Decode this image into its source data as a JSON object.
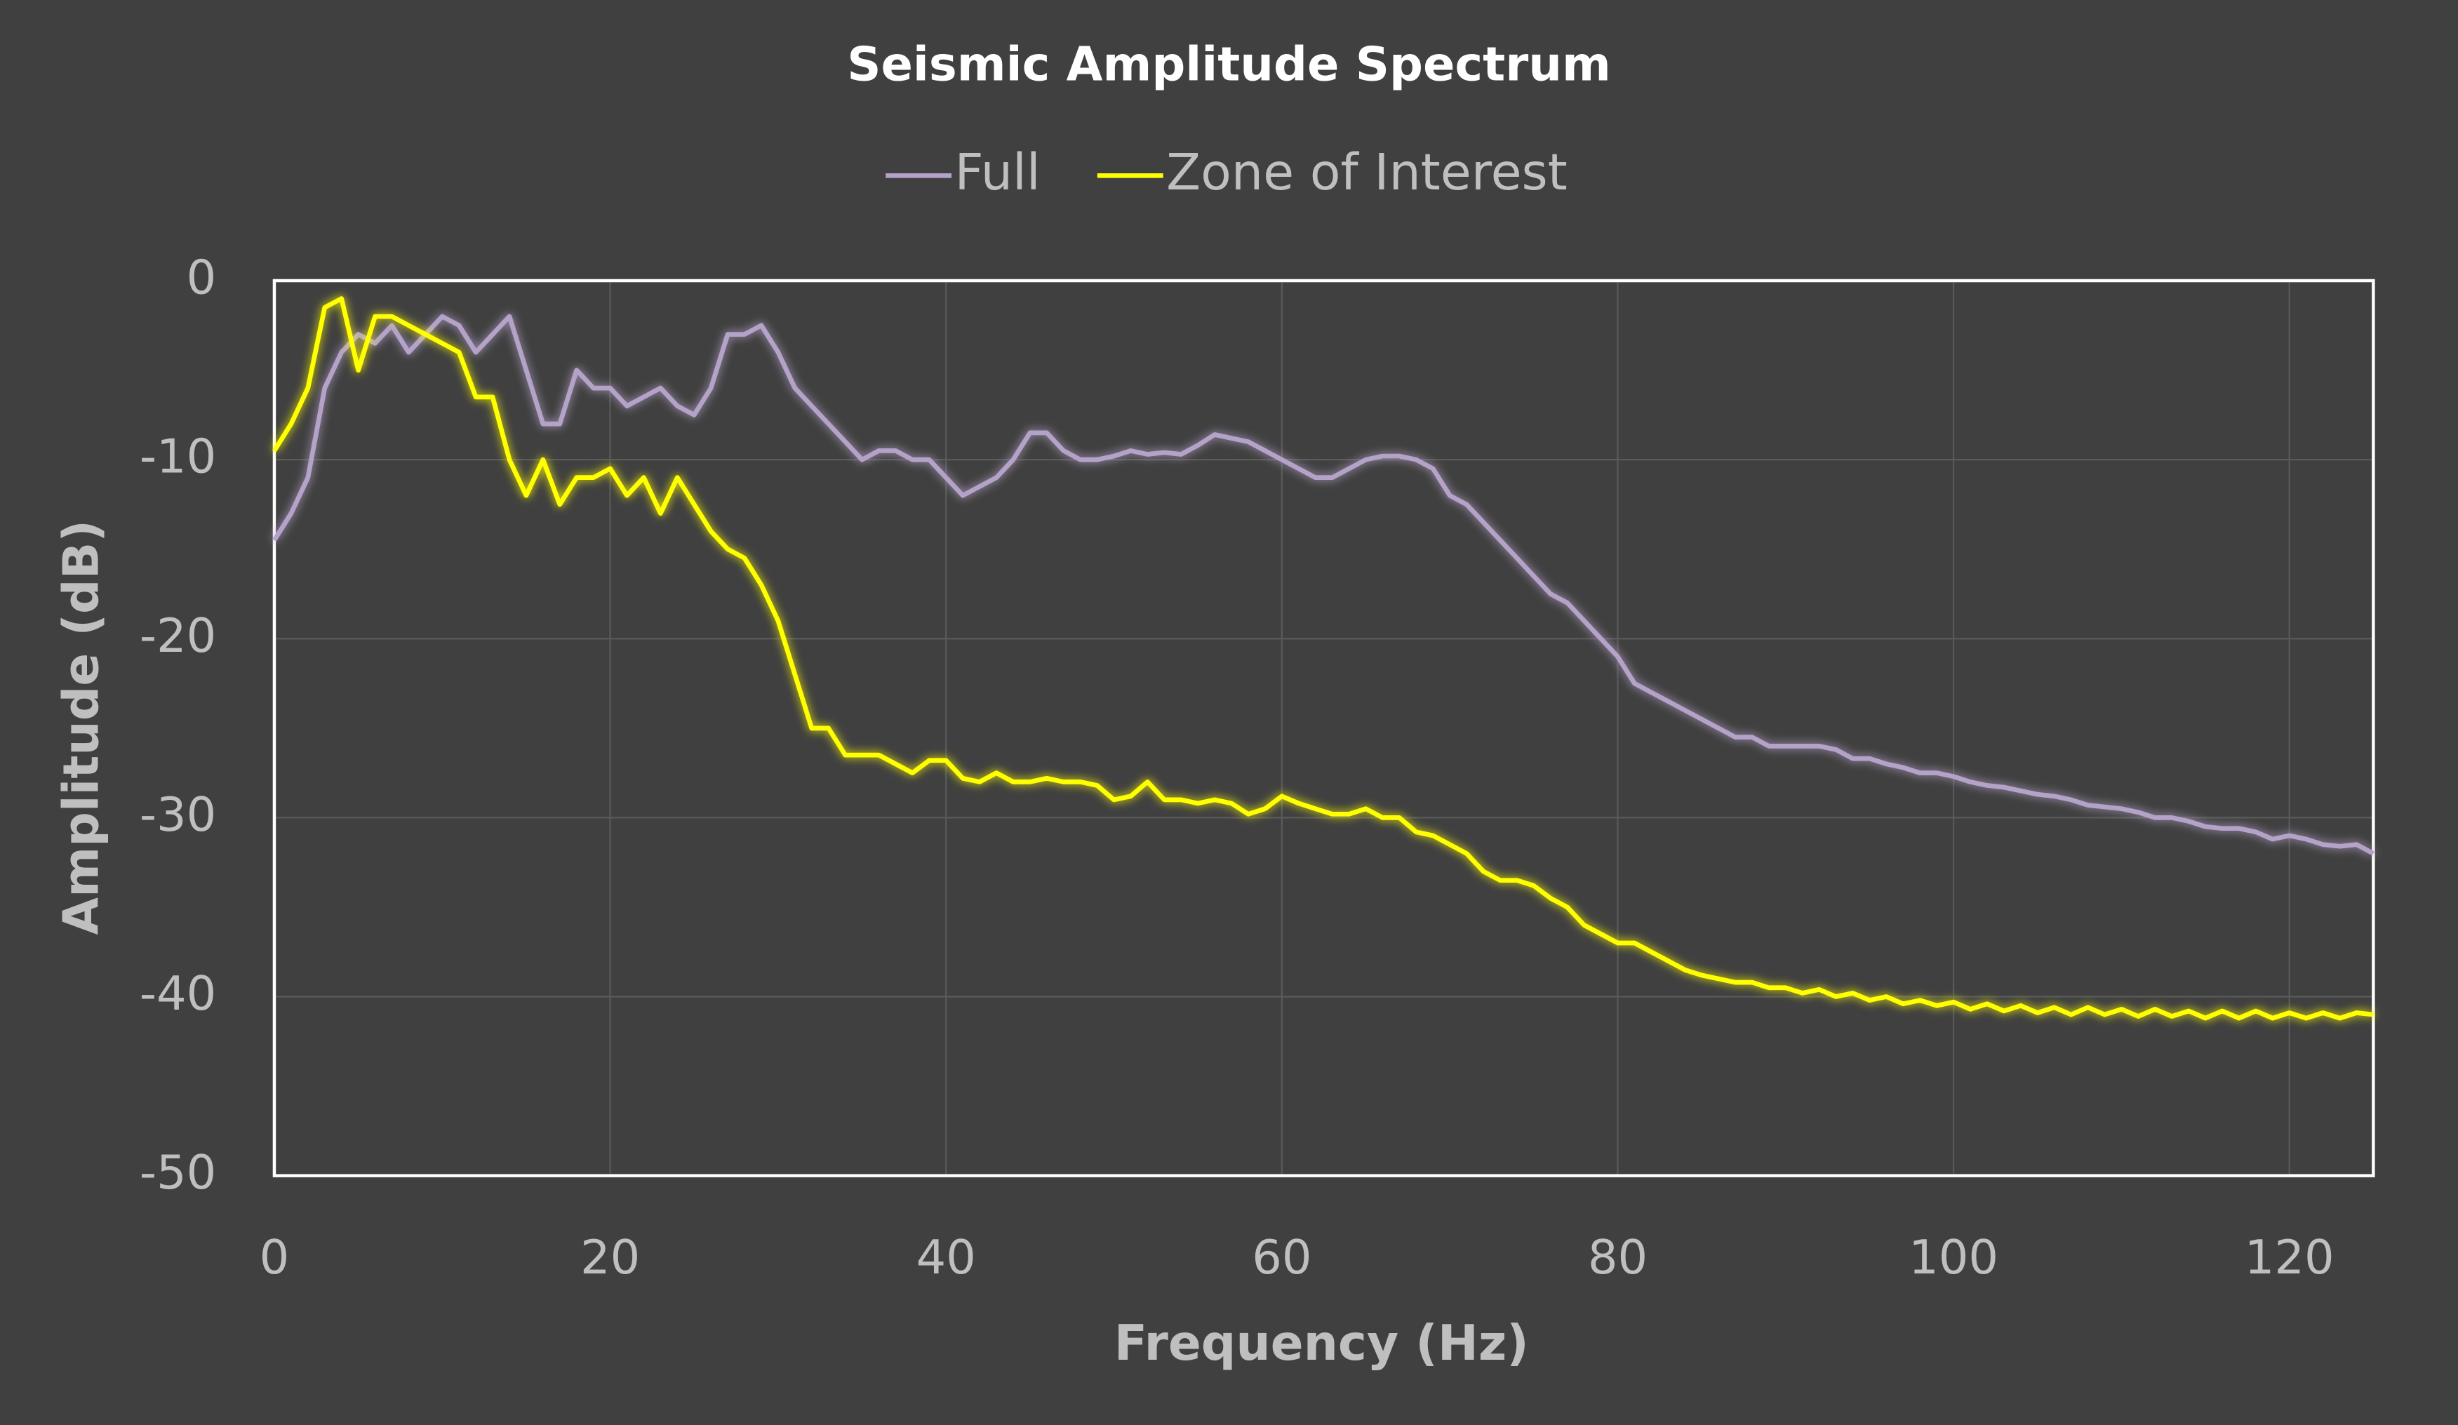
{
  "chart_data": {
    "type": "line",
    "title": "Seismic Amplitude Spectrum",
    "x_label": "Frequency (Hz)",
    "y_label": "Amplitude (dB)",
    "xlim": [
      0,
      125
    ],
    "xticks": [
      0,
      20,
      40,
      60,
      80,
      100,
      120
    ],
    "ylim": [
      -50,
      0
    ],
    "yticks": [
      -50,
      -40,
      -30,
      -20,
      -10,
      0
    ],
    "grid": true,
    "legend": "top",
    "x": [
      0,
      1,
      2,
      3,
      4,
      5,
      6,
      7,
      8,
      9,
      10,
      11,
      12,
      13,
      14,
      15,
      16,
      17,
      18,
      19,
      20,
      21,
      22,
      23,
      24,
      25,
      26,
      27,
      28,
      29,
      30,
      31,
      32,
      33,
      34,
      35,
      36,
      37,
      38,
      39,
      40,
      41,
      42,
      43,
      44,
      45,
      46,
      47,
      48,
      49,
      50,
      51,
      52,
      53,
      54,
      55,
      56,
      57,
      58,
      59,
      60,
      61,
      62,
      63,
      64,
      65,
      66,
      67,
      68,
      69,
      70,
      71,
      72,
      73,
      74,
      75,
      76,
      77,
      78,
      79,
      80,
      81,
      82,
      83,
      84,
      85,
      86,
      87,
      88,
      89,
      90,
      91,
      92,
      93,
      94,
      95,
      96,
      97,
      98,
      99,
      100,
      101,
      102,
      103,
      104,
      105,
      106,
      107,
      108,
      109,
      110,
      111,
      112,
      113,
      114,
      115,
      116,
      117,
      118,
      119,
      120,
      121,
      122,
      123,
      124,
      125
    ],
    "series": [
      {
        "name": "Full",
        "color": "#b4a2c8",
        "values": [
          -14.5,
          -13,
          -11,
          -6,
          -4,
          -3,
          -3.5,
          -2.5,
          -4,
          -3,
          -2,
          -2.5,
          -4,
          -3,
          -2,
          -5,
          -8,
          -8,
          -5,
          -6,
          -6,
          -7,
          -6.5,
          -6,
          -7,
          -7.5,
          -6,
          -3,
          -3,
          -2.5,
          -4,
          -6,
          -7,
          -8,
          -9,
          -10,
          -9.5,
          -9.5,
          -10,
          -10,
          -11,
          -12,
          -11.5,
          -11,
          -10,
          -8.5,
          -8.5,
          -9.5,
          -10,
          -10,
          -9.8,
          -9.5,
          -9.7,
          -9.6,
          -9.7,
          -9.2,
          -8.6,
          -8.8,
          -9,
          -9.5,
          -10,
          -10.5,
          -11,
          -11,
          -10.5,
          -10,
          -9.8,
          -9.8,
          -10,
          -10.5,
          -12,
          -12.5,
          -13.5,
          -14.5,
          -15.5,
          -16.5,
          -17.5,
          -18,
          -19,
          -20,
          -21,
          -22.5,
          -23,
          -23.5,
          -24,
          -24.5,
          -25,
          -25.5,
          -25.5,
          -26,
          -26,
          -26,
          -26,
          -26.2,
          -26.7,
          -26.7,
          -27,
          -27.2,
          -27.5,
          -27.5,
          -27.7,
          -28,
          -28.2,
          -28.3,
          -28.5,
          -28.7,
          -28.8,
          -29,
          -29.3,
          -29.4,
          -29.5,
          -29.7,
          -30,
          -30,
          -30.2,
          -30.5,
          -30.6,
          -30.6,
          -30.8,
          -31.2,
          -31,
          -31.2,
          -31.5,
          -31.6,
          -31.5,
          -32
        ]
      },
      {
        "name": "Zone of Interest",
        "color": "#ffff00",
        "values": [
          -9.5,
          -8,
          -6,
          -1.5,
          -1,
          -5,
          -2,
          -2,
          -2.5,
          -3,
          -3.5,
          -4,
          -6.5,
          -6.5,
          -10,
          -12,
          -10,
          -12.5,
          -11,
          -11,
          -10.5,
          -12,
          -11,
          -13,
          -11,
          -12.5,
          -14,
          -15,
          -15.5,
          -17,
          -19,
          -22,
          -25,
          -25,
          -26.5,
          -26.5,
          -26.5,
          -27,
          -27.5,
          -26.8,
          -26.8,
          -27.8,
          -28,
          -27.5,
          -28,
          -28,
          -27.8,
          -28,
          -28,
          -28.2,
          -29,
          -28.8,
          -28,
          -29,
          -29,
          -29.2,
          -29,
          -29.2,
          -29.8,
          -29.5,
          -28.8,
          -29.2,
          -29.5,
          -29.8,
          -29.8,
          -29.5,
          -30,
          -30,
          -30.8,
          -31,
          -31.5,
          -32,
          -33,
          -33.5,
          -33.5,
          -33.8,
          -34.5,
          -35,
          -36,
          -36.5,
          -37,
          -37,
          -37.5,
          -38,
          -38.5,
          -38.8,
          -39,
          -39.2,
          -39.2,
          -39.5,
          -39.5,
          -39.8,
          -39.6,
          -40,
          -39.8,
          -40.2,
          -40,
          -40.4,
          -40.2,
          -40.5,
          -40.3,
          -40.7,
          -40.4,
          -40.8,
          -40.5,
          -40.9,
          -40.6,
          -41,
          -40.6,
          -41,
          -40.7,
          -41.1,
          -40.7,
          -41.1,
          -40.8,
          -41.2,
          -40.8,
          -41.2,
          -40.8,
          -41.2,
          -40.9,
          -41.2,
          -40.9,
          -41.2,
          -40.9,
          -41
        ]
      }
    ]
  }
}
